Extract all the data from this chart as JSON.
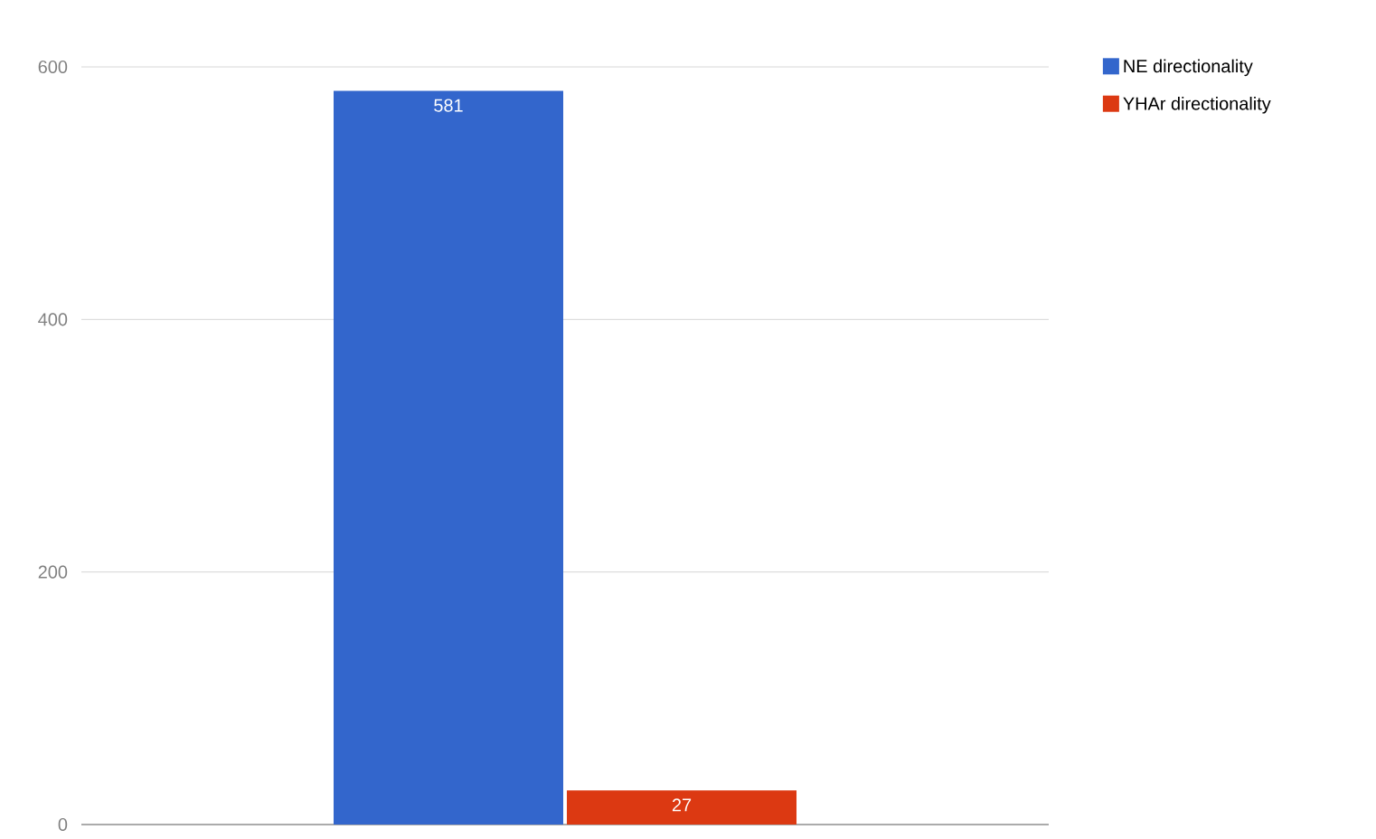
{
  "chart_data": {
    "type": "bar",
    "categories": [
      null
    ],
    "series": [
      {
        "name": "NE directionality",
        "color": "#3366cc",
        "values": [
          581
        ]
      },
      {
        "name": "YHAr directionality",
        "color": "#dc3912",
        "values": [
          27
        ]
      }
    ],
    "ylim": [
      0,
      600
    ],
    "yticks": [
      0,
      200,
      400,
      600
    ],
    "grid": "y",
    "legend": "top right",
    "data_labels": true
  }
}
